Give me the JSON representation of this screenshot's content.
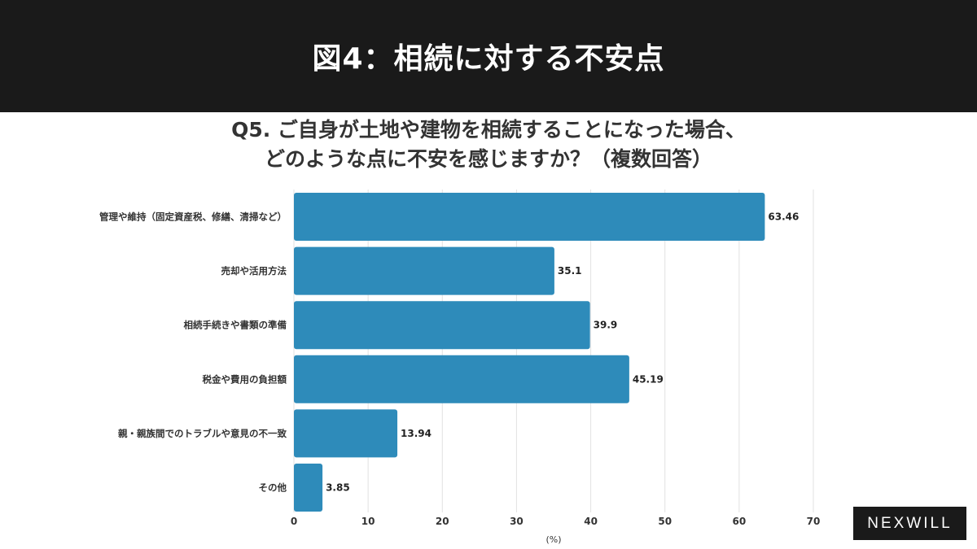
{
  "header": {
    "title": "図4：相続に対する不安点"
  },
  "chart_data": {
    "type": "bar",
    "orientation": "horizontal",
    "title_line1": "Q5. ご自身が土地や建物を相続することになった場合、",
    "title_line2": "どのような点に不安を感じますか？（複数回答）",
    "categories": [
      "管理や維持（固定資産税、修繕、清掃など）",
      "売却や活用方法",
      "相続手続きや書類の準備",
      "税金や費用の負担額",
      "親・親族間でのトラブルや意見の不一致",
      "その他"
    ],
    "values": [
      63.46,
      35.1,
      39.9,
      45.19,
      13.94,
      3.85
    ],
    "value_labels": [
      "63.46",
      "35.1",
      "39.9",
      "45.19",
      "13.94",
      "3.85"
    ],
    "xlabel": "(%)",
    "xlim": [
      0,
      70
    ],
    "xticks": [
      "0",
      "10",
      "20",
      "30",
      "40",
      "50",
      "60",
      "70"
    ],
    "grid": true,
    "bar_color": "#2e8bba"
  },
  "logo": {
    "text": "NEXWILL"
  }
}
